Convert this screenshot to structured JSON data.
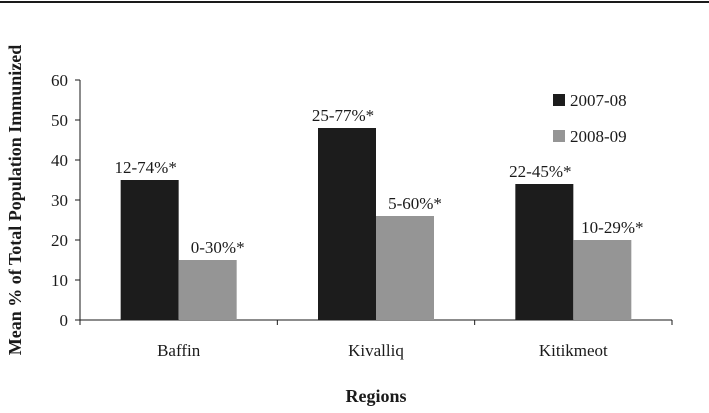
{
  "chart_data": {
    "type": "bar",
    "title": "",
    "xlabel": "Regions",
    "ylabel": "Mean % of Total Population Immunized",
    "ylim": [
      0,
      60
    ],
    "yticks": [
      0,
      10,
      20,
      30,
      40,
      50,
      60
    ],
    "categories": [
      "Baffin",
      "Kivalliq",
      "Kitikmeot"
    ],
    "series": [
      {
        "name": "2007-08",
        "color": "#1c1c1c",
        "values": [
          35,
          48,
          34
        ],
        "labels": [
          "12-74%*",
          "25-77%*",
          "22-45%*"
        ]
      },
      {
        "name": "2008-09",
        "color": "#959595",
        "values": [
          15,
          26,
          20
        ],
        "labels": [
          "0-30%*",
          "5-60%*",
          "10-29%*"
        ]
      }
    ],
    "legend_position": "top-right",
    "grid": false
  }
}
